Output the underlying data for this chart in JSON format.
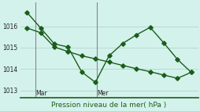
{
  "line1_x": [
    0,
    1,
    2,
    3,
    4,
    5,
    6,
    7,
    8,
    9,
    10,
    11,
    12
  ],
  "line1_y": [
    1016.65,
    1015.92,
    1015.18,
    1015.03,
    1013.87,
    1013.38,
    1014.62,
    1015.2,
    1015.6,
    1015.95,
    1015.22,
    1014.45,
    1013.85
  ],
  "line2_x": [
    0,
    1,
    2,
    3,
    4,
    5,
    6,
    7,
    8,
    9,
    10,
    11,
    12
  ],
  "line2_y": [
    1015.92,
    1015.7,
    1015.03,
    1014.82,
    1014.62,
    1014.48,
    1014.33,
    1014.17,
    1014.02,
    1013.88,
    1013.72,
    1013.57,
    1013.85
  ],
  "color": "#1a5e1a",
  "bg_color": "#d4f2ec",
  "grid_color": "#b8d8d2",
  "xlabel": "Pression niveau de la mer( hPa )",
  "yticks": [
    1013,
    1014,
    1015,
    1016
  ],
  "ylim": [
    1012.65,
    1017.1
  ],
  "xlim": [
    -0.5,
    12.5
  ],
  "mar_x": 0.6,
  "mer_x": 5.1,
  "vline_color": "#888888",
  "marker": "D",
  "markersize": 2.8,
  "linewidth": 1.0
}
